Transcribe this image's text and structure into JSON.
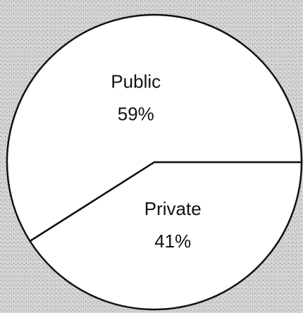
{
  "chart_data": {
    "type": "pie",
    "categories": [
      "Private",
      "Public"
    ],
    "values": [
      41,
      59
    ],
    "value_labels": [
      "41%",
      "59%"
    ],
    "colors": [
      "#ffffff",
      "#ffffff"
    ]
  }
}
